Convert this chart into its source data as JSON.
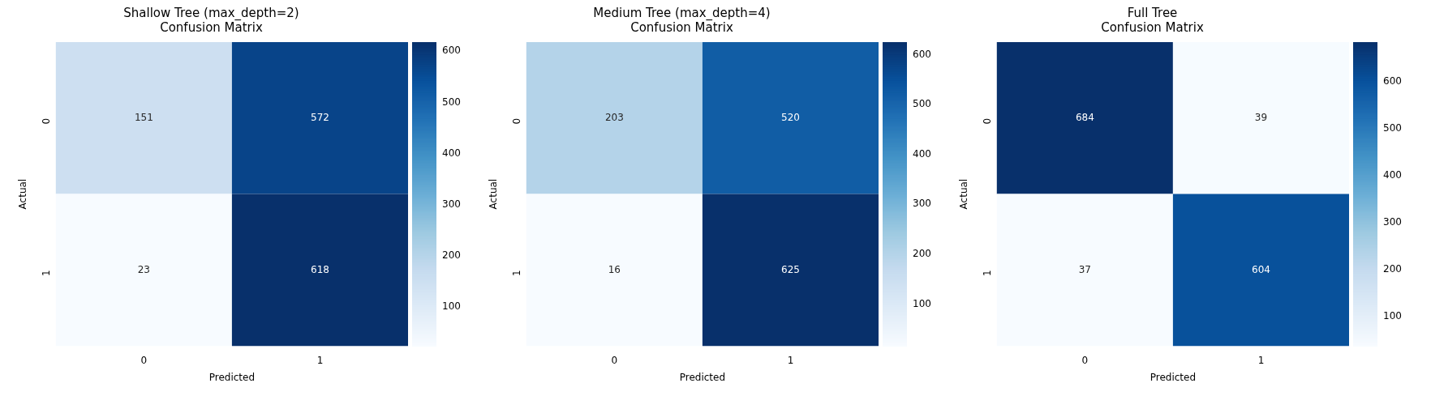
{
  "chart_data": [
    {
      "type": "heatmap",
      "title": "Shallow Tree (max_depth=2)\nConfusion Matrix",
      "xlabel": "Predicted",
      "ylabel": "Actual",
      "categories": [
        "0",
        "1"
      ],
      "y_categories": [
        "0",
        "1"
      ],
      "cells": [
        [
          151,
          572
        ],
        [
          23,
          618
        ]
      ],
      "clim": [
        23,
        618
      ],
      "cticks": [
        100,
        200,
        300,
        400,
        500,
        600
      ],
      "data_labels": true
    },
    {
      "type": "heatmap",
      "title": "Medium Tree (max_depth=4)\nConfusion Matrix",
      "xlabel": "Predicted",
      "ylabel": "Actual",
      "categories": [
        "0",
        "1"
      ],
      "y_categories": [
        "0",
        "1"
      ],
      "cells": [
        [
          203,
          520
        ],
        [
          16,
          625
        ]
      ],
      "clim": [
        16,
        625
      ],
      "cticks": [
        100,
        200,
        300,
        400,
        500,
        600
      ],
      "data_labels": true
    },
    {
      "type": "heatmap",
      "title": "Full Tree\nConfusion Matrix",
      "xlabel": "Predicted",
      "ylabel": "Actual",
      "categories": [
        "0",
        "1"
      ],
      "y_categories": [
        "0",
        "1"
      ],
      "cells": [
        [
          684,
          39
        ],
        [
          37,
          604
        ]
      ],
      "clim": [
        37,
        684
      ],
      "cticks": [
        100,
        200,
        300,
        400,
        500,
        600
      ],
      "data_labels": true
    }
  ]
}
